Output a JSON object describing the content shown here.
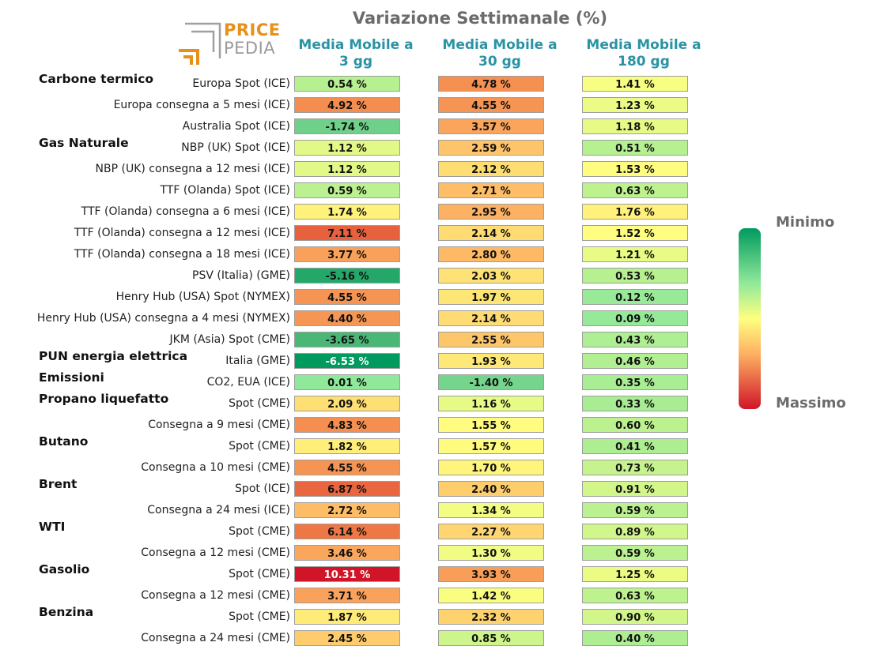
{
  "title": "Variazione Settimanale (%)",
  "logo": {
    "line1": "PRICE",
    "line2": "PEDIA"
  },
  "colors": {
    "accent": "#2a93a3",
    "logo_orange": "#e8901a",
    "scale_min": "#009a5e",
    "scale_mid": "#ffff80",
    "scale_max": "#d01528"
  },
  "legend": {
    "min_label": "Minimo",
    "max_label": "Massimo"
  },
  "chart_data": {
    "type": "table",
    "title": "Variazione Settimanale (%)",
    "columns": [
      {
        "line1": "Media Mobile a",
        "line2": "3 gg"
      },
      {
        "line1": "Media Mobile a",
        "line2": "30 gg"
      },
      {
        "line1": "Media Mobile a",
        "line2": "180 gg"
      }
    ],
    "groups": [
      {
        "name": "Carbone termico",
        "row": 0
      },
      {
        "name": "Gas Naturale",
        "row": 3
      },
      {
        "name": "PUN energia elettrica",
        "row": 13
      },
      {
        "name": "Emissioni",
        "row": 14
      },
      {
        "name": "Propano liquefatto",
        "row": 15
      },
      {
        "name": "Butano",
        "row": 17
      },
      {
        "name": "Brent",
        "row": 19
      },
      {
        "name": "WTI",
        "row": 21
      },
      {
        "name": "Gasolio",
        "row": 23
      },
      {
        "name": "Benzina",
        "row": 25
      }
    ],
    "rows": [
      {
        "label": "Europa Spot (ICE)",
        "values": [
          0.54,
          4.78,
          1.41
        ],
        "text": [
          "0.54 %",
          "4.78 %",
          "1.41 %"
        ]
      },
      {
        "label": "Europa consegna a 5 mesi (ICE)",
        "values": [
          4.92,
          4.55,
          1.23
        ],
        "text": [
          "4.92 %",
          "4.55 %",
          "1.23 %"
        ]
      },
      {
        "label": "Australia Spot (ICE)",
        "values": [
          -1.74,
          3.57,
          1.18
        ],
        "text": [
          "-1.74 %",
          "3.57 %",
          "1.18 %"
        ]
      },
      {
        "label": "NBP (UK) Spot (ICE)",
        "values": [
          1.12,
          2.59,
          0.51
        ],
        "text": [
          "1.12 %",
          "2.59 %",
          "0.51 %"
        ]
      },
      {
        "label": "NBP (UK) consegna a 12 mesi (ICE)",
        "values": [
          1.12,
          2.12,
          1.53
        ],
        "text": [
          "1.12 %",
          "2.12 %",
          "1.53 %"
        ]
      },
      {
        "label": "TTF (Olanda) Spot (ICE)",
        "values": [
          0.59,
          2.71,
          0.63
        ],
        "text": [
          "0.59 %",
          "2.71 %",
          "0.63 %"
        ]
      },
      {
        "label": "TTF (Olanda) consegna a 6 mesi (ICE)",
        "values": [
          1.74,
          2.95,
          1.76
        ],
        "text": [
          "1.74 %",
          "2.95 %",
          "1.76 %"
        ]
      },
      {
        "label": "TTF (Olanda) consegna a 12 mesi (ICE)",
        "values": [
          7.11,
          2.14,
          1.52
        ],
        "text": [
          "7.11 %",
          "2.14 %",
          "1.52 %"
        ]
      },
      {
        "label": "TTF (Olanda) consegna a 18 mesi (ICE)",
        "values": [
          3.77,
          2.8,
          1.21
        ],
        "text": [
          "3.77 %",
          "2.80 %",
          "1.21 %"
        ]
      },
      {
        "label": "PSV (Italia) (GME)",
        "values": [
          -5.16,
          2.03,
          0.53
        ],
        "text": [
          "-5.16 %",
          "2.03 %",
          "0.53 %"
        ]
      },
      {
        "label": "Henry Hub (USA) Spot (NYMEX)",
        "values": [
          4.55,
          1.97,
          0.12
        ],
        "text": [
          "4.55 %",
          "1.97 %",
          "0.12 %"
        ]
      },
      {
        "label": "Henry Hub (USA) consegna a 4 mesi (NYMEX)",
        "values": [
          4.4,
          2.14,
          0.09
        ],
        "text": [
          "4.40 %",
          "2.14 %",
          "0.09 %"
        ]
      },
      {
        "label": "JKM (Asia) Spot (CME)",
        "values": [
          -3.65,
          2.55,
          0.43
        ],
        "text": [
          "-3.65 %",
          "2.55 %",
          "0.43 %"
        ]
      },
      {
        "label": "Italia (GME)",
        "values": [
          -6.53,
          1.93,
          0.46
        ],
        "text": [
          "-6.53 %",
          "1.93 %",
          "0.46 %"
        ]
      },
      {
        "label": "CO2, EUA (ICE)",
        "values": [
          0.01,
          -1.4,
          0.35
        ],
        "text": [
          "0.01 %",
          "-1.40 %",
          "0.35 %"
        ]
      },
      {
        "label": "Spot (CME)",
        "values": [
          2.09,
          1.16,
          0.33
        ],
        "text": [
          "2.09 %",
          "1.16 %",
          "0.33 %"
        ]
      },
      {
        "label": "Consegna a 9 mesi (CME)",
        "values": [
          4.83,
          1.55,
          0.6
        ],
        "text": [
          "4.83 %",
          "1.55 %",
          "0.60 %"
        ]
      },
      {
        "label": "Spot (CME)",
        "values": [
          1.82,
          1.57,
          0.41
        ],
        "text": [
          "1.82 %",
          "1.57 %",
          "0.41 %"
        ]
      },
      {
        "label": "Consegna a 10 mesi (CME)",
        "values": [
          4.55,
          1.7,
          0.73
        ],
        "text": [
          "4.55 %",
          "1.70 %",
          "0.73 %"
        ]
      },
      {
        "label": "Spot (ICE)",
        "values": [
          6.87,
          2.4,
          0.91
        ],
        "text": [
          "6.87 %",
          "2.40 %",
          "0.91 %"
        ]
      },
      {
        "label": "Consegna a 24 mesi (ICE)",
        "values": [
          2.72,
          1.34,
          0.59
        ],
        "text": [
          "2.72 %",
          "1.34 %",
          "0.59 %"
        ]
      },
      {
        "label": "Spot (CME)",
        "values": [
          6.14,
          2.27,
          0.89
        ],
        "text": [
          "6.14 %",
          "2.27 %",
          "0.89 %"
        ]
      },
      {
        "label": "Consegna a 12 mesi (CME)",
        "values": [
          3.46,
          1.3,
          0.59
        ],
        "text": [
          "3.46 %",
          "1.30 %",
          "0.59 %"
        ]
      },
      {
        "label": "Spot (CME)",
        "values": [
          10.31,
          3.93,
          1.25
        ],
        "text": [
          "10.31 %",
          "3.93 %",
          "1.25 %"
        ]
      },
      {
        "label": "Consegna a 12 mesi (CME)",
        "values": [
          3.71,
          1.42,
          0.63
        ],
        "text": [
          "3.71 %",
          "1.42 %",
          "0.63 %"
        ]
      },
      {
        "label": "Spot (CME)",
        "values": [
          1.87,
          2.32,
          0.9
        ],
        "text": [
          "1.87 %",
          "2.32 %",
          "0.90 %"
        ]
      },
      {
        "label": "Consegna a 24 mesi (CME)",
        "values": [
          2.45,
          0.85,
          0.4
        ],
        "text": [
          "2.45 %",
          "0.85 %",
          "0.40 %"
        ]
      }
    ]
  }
}
